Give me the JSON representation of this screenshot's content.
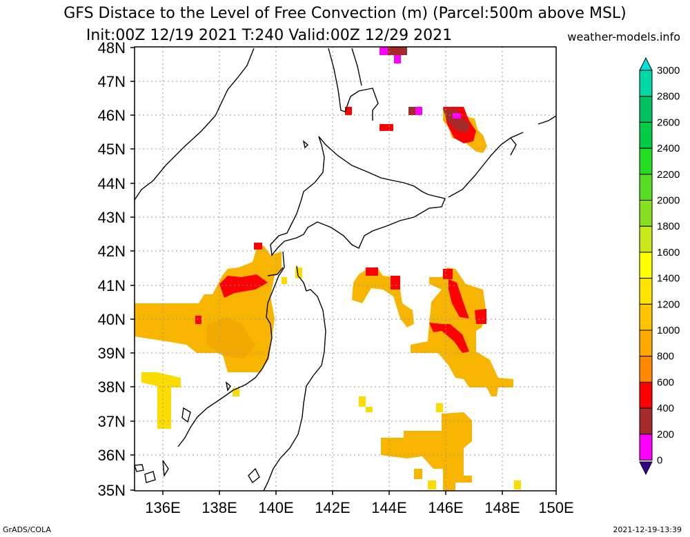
{
  "title_line1": "GFS Distace to the Level of Free Convection (m) (Parcel:500m above MSL)",
  "title_line2": "Init:00Z 12/19 2021 T:240 Valid:00Z 12/29 2021",
  "site": "weather-models.info",
  "footer_left": "GrADS/COLA",
  "footer_right": "2021-12-19-13:39",
  "lat_labels": [
    "48N",
    "47N",
    "46N",
    "45N",
    "44N",
    "43N",
    "42N",
    "41N",
    "40N",
    "39N",
    "38N",
    "37N",
    "36N",
    "35N"
  ],
  "lon_labels": [
    "136E",
    "138E",
    "140E",
    "142E",
    "144E",
    "146E",
    "148E",
    "150E"
  ],
  "colorbar": {
    "labels": [
      "3000",
      "2800",
      "2600",
      "2400",
      "2200",
      "2000",
      "1800",
      "1600",
      "1400",
      "1200",
      "1000",
      "800",
      "600",
      "400",
      "200",
      "0"
    ],
    "colors": [
      "#00e0d8",
      "#00d8a8",
      "#00c060",
      "#00cc44",
      "#22dd22",
      "#55dd22",
      "#88e020",
      "#c8e818",
      "#ffff00",
      "#ffe400",
      "#ffc400",
      "#ffa800",
      "#ff8800",
      "#ff0000",
      "#a52a2a",
      "#ff00ff",
      "#330088"
    ]
  },
  "colors": {
    "c800": "#f7b500",
    "c1000": "#f7c800",
    "c1200": "#fbdc00",
    "c600": "#ff9400",
    "c400": "#ff0000",
    "c200": "#a52a2a",
    "c0": "#ff00ff"
  }
}
